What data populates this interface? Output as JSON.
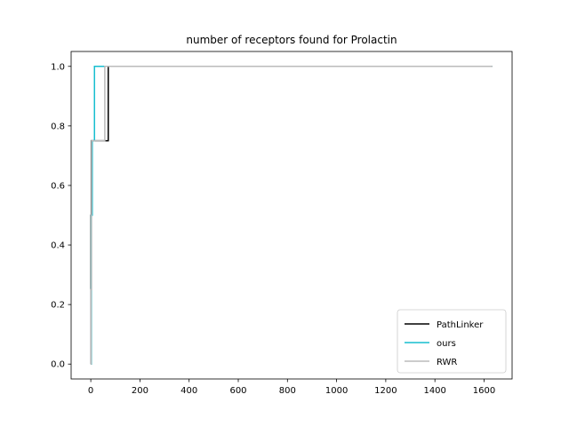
{
  "chart_data": {
    "type": "line",
    "title": "number of receptors found for Prolactin",
    "xlabel": "",
    "ylabel": "",
    "xlim": [
      -80,
      1714
    ],
    "ylim": [
      -0.05,
      1.05
    ],
    "xticks": [
      0,
      200,
      400,
      600,
      800,
      1000,
      1200,
      1400,
      1600
    ],
    "yticks": [
      0.0,
      0.2,
      0.4,
      0.6,
      0.8,
      1.0
    ],
    "ytick_labels": [
      "0.0",
      "0.2",
      "0.4",
      "0.6",
      "0.8",
      "1.0"
    ],
    "legend_position": "lower-right",
    "grid": false,
    "series": [
      {
        "name": "PathLinker",
        "color": "#000000",
        "step": true,
        "points": [
          [
            0,
            0.0
          ],
          [
            1,
            0.5
          ],
          [
            2,
            0.75
          ],
          [
            70,
            0.75
          ],
          [
            71,
            1.0
          ],
          [
            1634,
            1.0
          ]
        ]
      },
      {
        "name": "ours",
        "color": "#17becf",
        "step": true,
        "points": [
          [
            0,
            0.0
          ],
          [
            2,
            0.5
          ],
          [
            6,
            0.75
          ],
          [
            14,
            0.75
          ],
          [
            15,
            1.0
          ],
          [
            1634,
            1.0
          ]
        ]
      },
      {
        "name": "RWR",
        "color": "#bbbbbb",
        "step": true,
        "points": [
          [
            0,
            0.0
          ],
          [
            1,
            0.25
          ],
          [
            3,
            0.75
          ],
          [
            55,
            0.75
          ],
          [
            57,
            1.0
          ],
          [
            1634,
            1.0
          ]
        ]
      }
    ]
  }
}
